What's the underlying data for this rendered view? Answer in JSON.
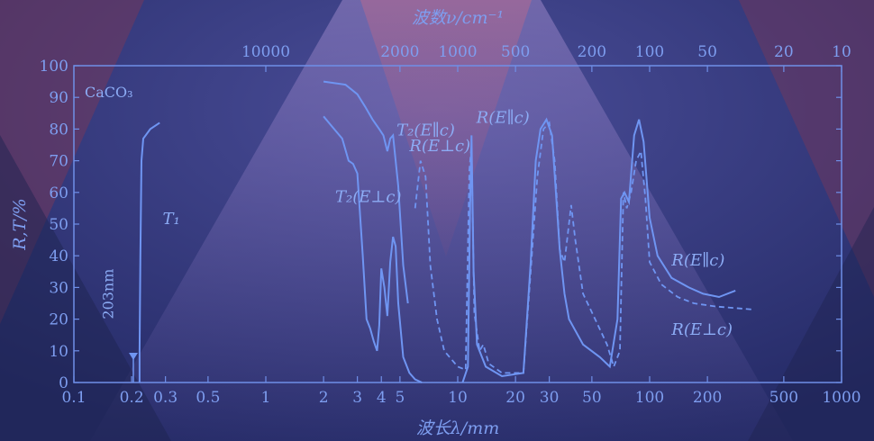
{
  "chart_data": {
    "type": "line",
    "top_axis_title": "波数ν/cm⁻¹",
    "bottom_axis_title": "波长λ/mm",
    "y_axis_title": "R,T/%",
    "x_scale": "log",
    "xlim": [
      0.1,
      1000
    ],
    "ylim": [
      0,
      100
    ],
    "y_ticks": [
      "0",
      "10",
      "20",
      "30",
      "40",
      "50",
      "60",
      "70",
      "80",
      "90",
      "100"
    ],
    "x_ticks": [
      {
        "v": 0.1,
        "label": "0.1"
      },
      {
        "v": 0.2,
        "label": "0.2"
      },
      {
        "v": 0.3,
        "label": "0.3"
      },
      {
        "v": 0.5,
        "label": "0.5"
      },
      {
        "v": 1,
        "label": "1"
      },
      {
        "v": 2,
        "label": "2"
      },
      {
        "v": 3,
        "label": "3"
      },
      {
        "v": 4,
        "label": "4"
      },
      {
        "v": 5,
        "label": "5"
      },
      {
        "v": 10,
        "label": "10"
      },
      {
        "v": 20,
        "label": "20"
      },
      {
        "v": 30,
        "label": "30"
      },
      {
        "v": 50,
        "label": "50"
      },
      {
        "v": 100,
        "label": "100"
      },
      {
        "v": 200,
        "label": "200"
      },
      {
        "v": 500,
        "label": "500"
      },
      {
        "v": 1000,
        "label": "1000"
      }
    ],
    "top_ticks": [
      {
        "v": 10000,
        "label": "10000"
      },
      {
        "v": 2000,
        "label": "2000"
      },
      {
        "v": 1000,
        "label": "1000"
      },
      {
        "v": 500,
        "label": "500"
      },
      {
        "v": 200,
        "label": "200"
      },
      {
        "v": 100,
        "label": "100"
      },
      {
        "v": 50,
        "label": "50"
      },
      {
        "v": 20,
        "label": "20"
      },
      {
        "v": 10,
        "label": "10"
      }
    ],
    "material_label": "CaCO₃",
    "series": [
      {
        "name": "T₁",
        "style": "solid",
        "points": [
          [
            0.22,
            0
          ],
          [
            0.22,
            10
          ],
          [
            0.222,
            40
          ],
          [
            0.225,
            70
          ],
          [
            0.23,
            77
          ],
          [
            0.25,
            80
          ],
          [
            0.28,
            82
          ]
        ]
      },
      {
        "name": "T₂(E⊥c)",
        "style": "solid",
        "points": [
          [
            2,
            84
          ],
          [
            2.2,
            81
          ],
          [
            2.5,
            77
          ],
          [
            2.7,
            70
          ],
          [
            2.85,
            69
          ],
          [
            3.0,
            66
          ],
          [
            3.2,
            40
          ],
          [
            3.35,
            20
          ],
          [
            3.5,
            17
          ],
          [
            3.65,
            13
          ],
          [
            3.8,
            10
          ],
          [
            3.9,
            18
          ],
          [
            4.0,
            36
          ],
          [
            4.15,
            30
          ],
          [
            4.3,
            21
          ],
          [
            4.45,
            38
          ],
          [
            4.6,
            46
          ],
          [
            4.75,
            43
          ],
          [
            4.9,
            25
          ],
          [
            5.2,
            8
          ],
          [
            5.6,
            3
          ],
          [
            6.0,
            1
          ],
          [
            6.5,
            0
          ]
        ]
      },
      {
        "name": "T₂(E∥c)",
        "style": "solid",
        "points": [
          [
            2,
            95
          ],
          [
            2.6,
            94
          ],
          [
            3.0,
            91
          ],
          [
            3.3,
            87
          ],
          [
            3.6,
            83
          ],
          [
            3.9,
            80
          ],
          [
            4.1,
            78
          ],
          [
            4.3,
            73
          ],
          [
            4.45,
            77
          ],
          [
            4.6,
            78
          ],
          [
            4.75,
            70
          ],
          [
            4.9,
            62
          ],
          [
            5.2,
            37
          ],
          [
            5.5,
            25
          ]
        ]
      },
      {
        "name": "R(E⊥c)",
        "style": "dashed",
        "points": [
          [
            6.0,
            55
          ],
          [
            6.4,
            70
          ],
          [
            6.8,
            65
          ],
          [
            7.2,
            37
          ],
          [
            7.8,
            20
          ],
          [
            8.5,
            10
          ],
          [
            10,
            5
          ],
          [
            11,
            4
          ],
          [
            11.5,
            67
          ],
          [
            11.8,
            75
          ],
          [
            12.2,
            22
          ],
          [
            13,
            10
          ],
          [
            13.6,
            12
          ],
          [
            14.5,
            6
          ],
          [
            17,
            3
          ],
          [
            22,
            3
          ],
          [
            24,
            35
          ],
          [
            26,
            65
          ],
          [
            28,
            80
          ],
          [
            30,
            82
          ],
          [
            32,
            70
          ],
          [
            34,
            42
          ],
          [
            36,
            38
          ],
          [
            39,
            56
          ],
          [
            41,
            45
          ],
          [
            45,
            28
          ],
          [
            52,
            20
          ],
          [
            60,
            12
          ],
          [
            65,
            5
          ],
          [
            70,
            10
          ],
          [
            73,
            60
          ],
          [
            76,
            55
          ],
          [
            80,
            60
          ],
          [
            85,
            70
          ],
          [
            90,
            73
          ],
          [
            95,
            58
          ],
          [
            100,
            38
          ],
          [
            115,
            31
          ],
          [
            140,
            27
          ],
          [
            170,
            25
          ],
          [
            220,
            24
          ],
          [
            350,
            23
          ]
        ]
      },
      {
        "name": "R(E∥c)",
        "style": "solid",
        "points": [
          [
            10.6,
            0
          ],
          [
            11.3,
            5
          ],
          [
            11.6,
            55
          ],
          [
            11.8,
            78
          ],
          [
            12.1,
            35
          ],
          [
            12.6,
            12
          ],
          [
            14,
            5
          ],
          [
            17,
            2
          ],
          [
            22,
            3
          ],
          [
            24,
            38
          ],
          [
            25.5,
            70
          ],
          [
            27,
            80
          ],
          [
            29,
            83
          ],
          [
            31,
            78
          ],
          [
            34,
            42
          ],
          [
            36,
            28
          ],
          [
            38,
            20
          ],
          [
            45,
            12
          ],
          [
            55,
            8
          ],
          [
            62,
            5
          ],
          [
            68,
            20
          ],
          [
            71,
            58
          ],
          [
            74,
            60
          ],
          [
            78,
            57
          ],
          [
            83,
            78
          ],
          [
            88,
            83
          ],
          [
            93,
            76
          ],
          [
            100,
            52
          ],
          [
            110,
            40
          ],
          [
            130,
            33
          ],
          [
            160,
            30
          ],
          [
            190,
            28
          ],
          [
            230,
            27
          ],
          [
            280,
            29
          ]
        ]
      }
    ],
    "annotations": [
      {
        "text": "203nm",
        "x": 0.16,
        "y": 20
      },
      {
        "text": "T₁",
        "x": 0.29,
        "y": 50
      },
      {
        "text": "T₂(E⊥c)",
        "x": 2.3,
        "y": 57
      },
      {
        "text": "T₂(E∥c)",
        "x": 4.8,
        "y": 78
      },
      {
        "text": "R(E⊥c)",
        "x": 5.6,
        "y": 73
      },
      {
        "text": "R(E∥c)",
        "x": 12.5,
        "y": 82
      },
      {
        "text": "R(E∥c)",
        "x": 130,
        "y": 37
      },
      {
        "text": "R(E⊥c)",
        "x": 130,
        "y": 15
      }
    ],
    "grid": false,
    "legend": "none"
  }
}
